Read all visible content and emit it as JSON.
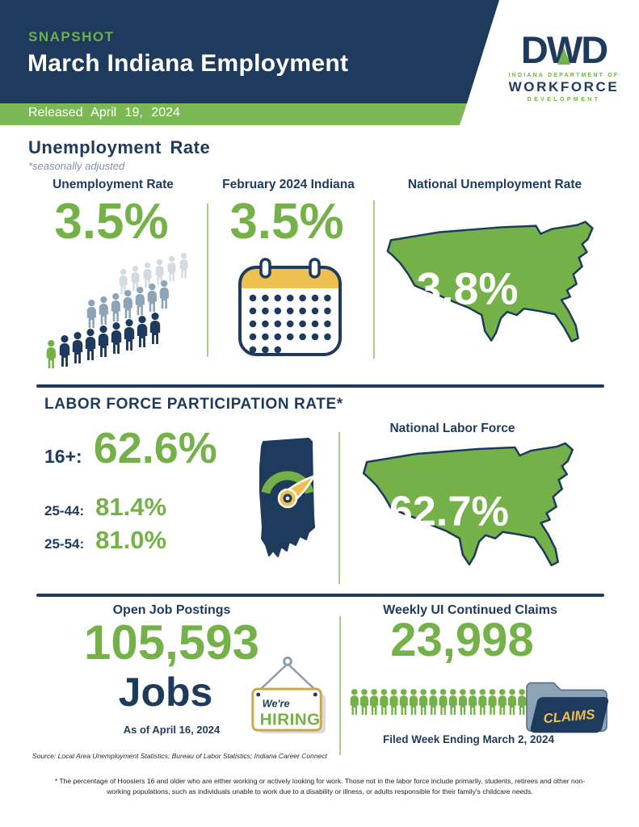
{
  "header": {
    "eyebrow": "SNAPSHOT",
    "title": "March Indiana Employment",
    "released": "Released April 19, 2024"
  },
  "logo": {
    "d1": "D",
    "w": "W",
    "d2": "D",
    "line1": "INDIANA DEPARTMENT OF",
    "line2": "WORKFORCE",
    "line3": "DEVELOPMENT"
  },
  "unemployment": {
    "title": "Unemployment Rate",
    "note": "*seasonally adjusted",
    "indiana": {
      "label": "Unemployment Rate",
      "value": "3.5%"
    },
    "prior": {
      "label": "February 2024 Indiana",
      "value": "3.5%"
    },
    "national": {
      "label": "National Unemployment Rate",
      "value": "3.8%"
    }
  },
  "lfpr": {
    "title": "LABOR FORCE PARTICIPATION RATE*",
    "rows": [
      {
        "label": "16+:",
        "value": "62.6%"
      },
      {
        "label": "25-44:",
        "value": "81.4%"
      },
      {
        "label": "25-54:",
        "value": "81.0%"
      }
    ],
    "national": {
      "label": "National Labor Force",
      "value": "62.7%"
    }
  },
  "jobs": {
    "label": "Open Job Postings",
    "value": "105,593",
    "unit": "Jobs",
    "as_of": "As of April 16, 2024",
    "sign": {
      "line1": "We're",
      "line2": "HIRING"
    }
  },
  "claims": {
    "label": "Weekly UI Continued Claims",
    "value": "23,998",
    "folder_label": "CLAIMS",
    "filed": "Filed Week Ending March 2, 2024"
  },
  "source": "Source: Local Area Unemployment Statistics; Bureau of Labor Statistics; Indiana Career Connect",
  "footnote": "* The percentage of Hoosiers 16 and older who are either working or actively looking for work. Those not in the labor force include primarily, students, retirees and other non-working populations, such as individuals unable to work due to a disability or illness, or adults responsible for their family's childcare needs.",
  "colors": {
    "navy": "#1e3a5c",
    "green": "#74b148",
    "bar_green": "#7cb956",
    "calendar_yellow": "#eec04f",
    "sign_border_gold": "#c9a84c",
    "gray_blue": "#8ca3b8",
    "light_gray": "#d3dbe2"
  }
}
